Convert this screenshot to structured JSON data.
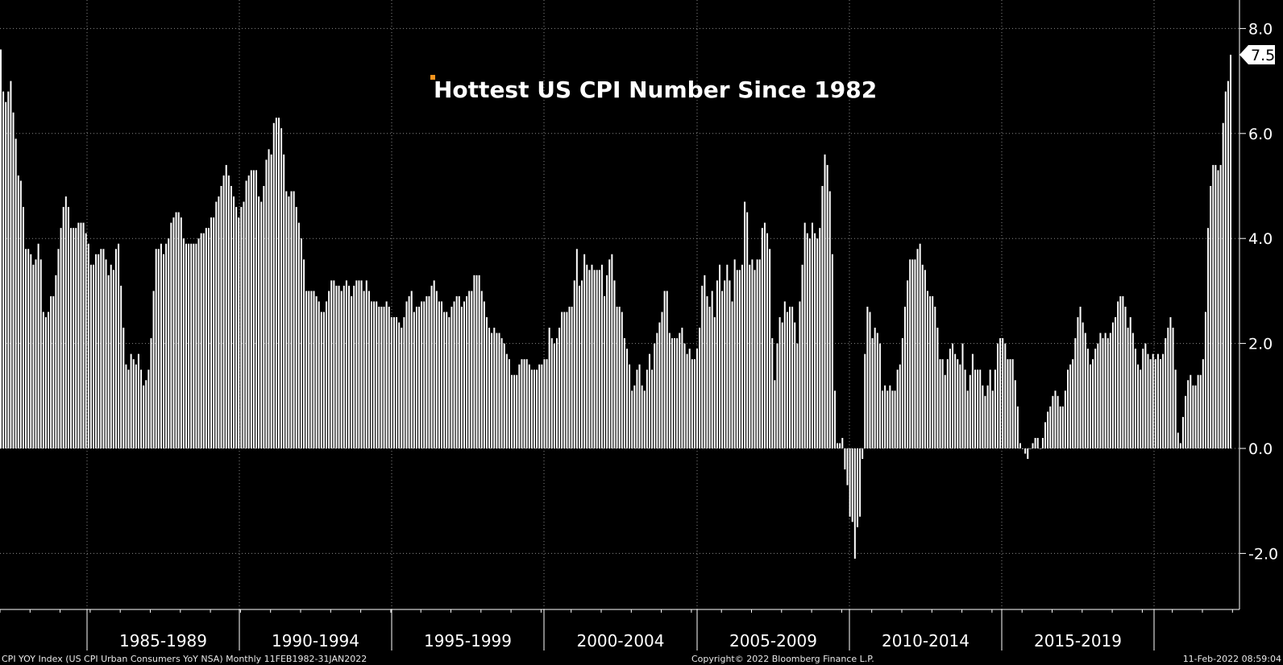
{
  "chart_data": {
    "type": "bar",
    "title": "Hottest US CPI Number Since 1982",
    "title_marker_color": "#f7941d",
    "bar_color": "#ffffff",
    "background_color": "#000000",
    "grid": true,
    "ylim": [
      -3,
      8.5
    ],
    "y_ticks": [
      "8.0",
      "6.0",
      "4.0",
      "2.0",
      "0.0",
      "-2.0"
    ],
    "last_value_label": "7.5",
    "x_period_labels": [
      "1985-1989",
      "1990-1994",
      "1995-1999",
      "2000-2004",
      "2005-2009",
      "2010-2014",
      "2015-2019"
    ],
    "x_start": "1982-02",
    "frequency": "Monthly",
    "annual_values": [
      [
        7.6,
        6.8,
        6.6,
        6.8,
        7.0,
        6.4,
        5.9,
        5.2,
        5.1,
        4.6,
        3.8,
        3.8
      ],
      [
        3.7,
        3.5,
        3.6,
        3.9,
        3.6,
        2.6,
        2.5,
        2.6,
        2.9,
        2.9,
        3.3,
        3.8
      ],
      [
        4.2,
        4.6,
        4.8,
        4.6,
        4.2,
        4.2,
        4.2,
        4.3,
        4.3,
        4.3,
        4.1,
        3.9
      ],
      [
        3.5,
        3.5,
        3.7,
        3.7,
        3.8,
        3.8,
        3.6,
        3.3,
        3.5,
        3.4,
        3.8,
        3.9
      ],
      [
        3.1,
        2.3,
        1.6,
        1.5,
        1.8,
        1.7,
        1.6,
        1.8,
        1.5,
        1.2,
        1.3,
        1.5
      ],
      [
        2.1,
        3.0,
        3.8,
        3.8,
        3.9,
        3.7,
        3.9,
        4.0,
        4.3,
        4.4,
        4.5,
        4.5
      ],
      [
        4.4,
        4.0,
        3.9,
        3.9,
        3.9,
        3.9,
        3.9,
        4.0,
        4.1,
        4.1,
        4.2,
        4.2
      ],
      [
        4.4,
        4.4,
        4.7,
        4.8,
        5.0,
        5.2,
        5.4,
        5.2,
        5.0,
        4.8,
        4.6,
        4.4
      ],
      [
        4.6,
        4.7,
        5.1,
        5.2,
        5.3,
        5.3,
        5.3,
        4.8,
        4.7,
        5.0,
        5.5,
        5.7
      ],
      [
        5.6,
        6.2,
        6.3,
        6.3,
        6.1,
        5.6,
        4.9,
        4.8,
        4.9,
        4.9,
        4.6,
        4.3
      ],
      [
        4.0,
        3.6,
        3.0,
        3.0,
        3.0,
        3.0,
        2.9,
        2.8,
        2.6,
        2.6,
        2.8,
        3.0
      ],
      [
        3.2,
        3.2,
        3.1,
        3.1,
        3.0,
        3.1,
        3.2,
        3.1,
        2.9,
        3.1,
        3.2,
        3.2
      ],
      [
        3.2,
        3.0,
        3.2,
        3.0,
        2.8,
        2.8,
        2.8,
        2.7,
        2.7,
        2.7,
        2.8,
        2.7
      ],
      [
        2.5,
        2.5,
        2.5,
        2.4,
        2.3,
        2.5,
        2.8,
        2.9,
        3.0,
        2.6,
        2.7,
        2.7
      ],
      [
        2.8,
        2.8,
        2.9,
        2.9,
        3.1,
        3.2,
        3.0,
        2.8,
        2.8,
        2.6,
        2.6,
        2.5
      ],
      [
        2.7,
        2.8,
        2.9,
        2.9,
        2.7,
        2.8,
        2.9,
        3.0,
        3.0,
        3.3,
        3.3,
        3.3
      ],
      [
        3.0,
        2.8,
        2.5,
        2.3,
        2.2,
        2.3,
        2.2,
        2.2,
        2.1,
        2.0,
        1.8,
        1.7
      ],
      [
        1.4,
        1.4,
        1.4,
        1.6,
        1.7,
        1.7,
        1.7,
        1.6,
        1.5,
        1.5,
        1.5,
        1.6
      ],
      [
        1.6,
        1.7,
        1.7,
        2.3,
        2.1,
        2.0,
        2.1,
        2.3,
        2.6,
        2.6,
        2.6,
        2.7
      ],
      [
        2.7,
        3.2,
        3.8,
        3.1,
        3.2,
        3.7,
        3.5,
        3.4,
        3.5,
        3.4,
        3.4,
        3.4
      ],
      [
        3.5,
        2.9,
        3.3,
        3.6,
        3.7,
        3.2,
        2.7,
        2.7,
        2.6,
        2.1,
        1.9,
        1.6
      ],
      [
        1.1,
        1.2,
        1.5,
        1.6,
        1.2,
        1.1,
        1.5,
        1.8,
        1.5,
        2.0,
        2.2,
        2.4
      ],
      [
        2.6,
        3.0,
        3.0,
        2.2,
        2.1,
        2.1,
        2.1,
        2.2,
        2.3,
        2.0,
        1.8,
        1.9
      ],
      [
        1.7,
        1.7,
        1.9,
        2.3,
        3.1,
        3.3,
        2.9,
        2.7,
        3.0,
        2.5,
        3.2,
        3.5
      ],
      [
        3.0,
        3.2,
        3.5,
        3.2,
        2.8,
        3.6,
        3.4,
        3.4,
        3.5,
        4.7,
        4.5,
        3.5
      ],
      [
        3.6,
        3.4,
        3.6,
        3.6,
        4.2,
        4.3,
        4.1,
        3.8,
        2.1,
        1.3,
        2.0,
        2.5
      ],
      [
        2.4,
        2.8,
        2.6,
        2.7,
        2.7,
        2.4,
        2.0,
        2.8,
        3.5,
        4.3,
        4.1,
        4.0
      ],
      [
        4.3,
        4.1,
        4.0,
        4.2,
        5.0,
        5.6,
        5.4,
        4.9,
        3.7,
        1.1,
        0.1,
        0.1
      ],
      [
        0.2,
        -0.4,
        -0.7,
        -1.3,
        -1.4,
        -2.1,
        -1.5,
        -1.3,
        -0.2,
        1.8,
        2.7,
        2.6
      ],
      [
        2.1,
        2.3,
        2.2,
        2.0,
        1.1,
        1.2,
        1.1,
        1.2,
        1.1,
        1.1,
        1.5,
        1.6
      ],
      [
        2.1,
        2.7,
        3.2,
        3.6,
        3.6,
        3.6,
        3.8,
        3.9,
        3.5,
        3.4,
        3.0,
        2.9
      ],
      [
        2.9,
        2.7,
        2.3,
        1.7,
        1.7,
        1.4,
        1.7,
        1.9,
        2.0,
        1.8,
        1.7,
        1.6
      ],
      [
        2.0,
        1.5,
        1.1,
        1.4,
        1.8,
        1.5,
        1.5,
        1.5,
        1.2,
        1.0,
        1.2,
        1.5
      ],
      [
        1.1,
        1.5,
        2.0,
        2.1,
        2.1,
        2.0,
        1.7,
        1.7,
        1.7,
        1.3,
        0.8,
        0.1
      ],
      [
        0.0,
        -0.1,
        -0.2,
        0.0,
        0.1,
        0.2,
        0.2,
        0.0,
        0.2,
        0.5,
        0.7,
        0.8
      ],
      [
        1.0,
        1.1,
        1.0,
        0.8,
        0.8,
        1.1,
        1.5,
        1.6,
        1.7,
        2.1,
        2.5,
        2.7
      ],
      [
        2.4,
        2.2,
        1.9,
        1.6,
        1.7,
        1.9,
        2.0,
        2.2,
        2.1,
        2.2,
        2.1,
        2.2
      ],
      [
        2.4,
        2.5,
        2.8,
        2.9,
        2.9,
        2.7,
        2.3,
        2.5,
        2.2,
        1.9,
        1.6,
        1.5
      ],
      [
        1.9,
        2.0,
        1.8,
        1.7,
        1.8,
        1.7,
        1.8,
        1.7,
        1.8,
        2.1,
        2.3,
        2.5
      ],
      [
        2.3,
        1.5,
        0.3,
        0.1,
        0.6,
        1.0,
        1.3,
        1.4,
        1.2,
        1.2,
        1.4,
        1.4
      ],
      [
        1.7,
        2.6,
        4.2,
        5.0,
        5.4,
        5.4,
        5.3,
        5.4,
        6.2,
        6.8,
        7.0,
        7.5
      ]
    ]
  },
  "footer": {
    "left": "CPI YOY Index (US CPI Urban Consumers YoY NSA)  Monthly 11FEB1982-31JAN2022",
    "center": "Copyright© 2022 Bloomberg Finance L.P.",
    "right": "11-Feb-2022 08:59:04"
  }
}
